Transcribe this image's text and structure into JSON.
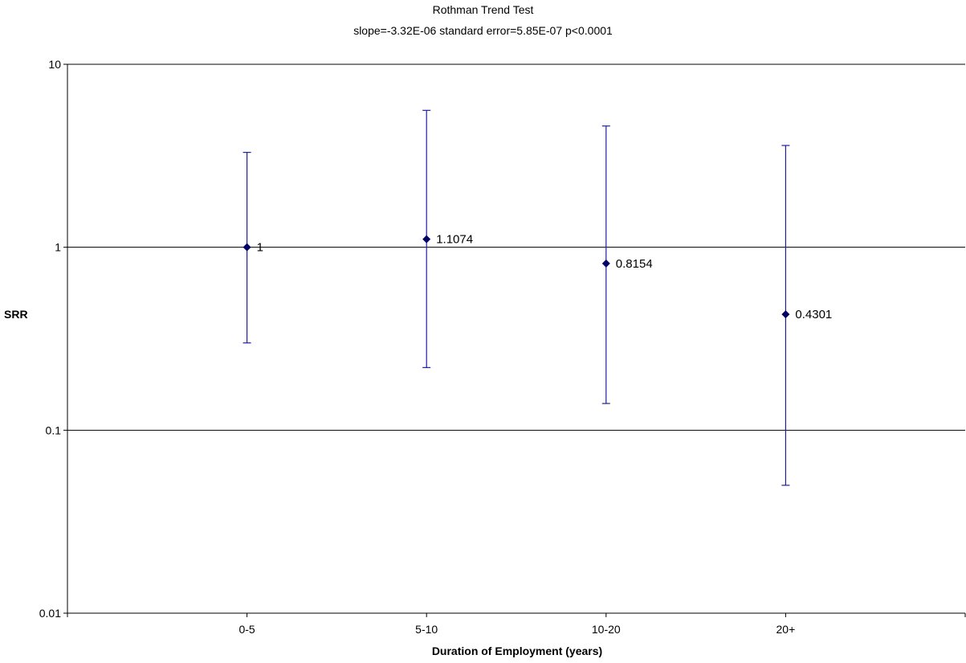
{
  "chart_data": {
    "type": "scatter",
    "title": "Rothman Trend Test",
    "subtitle": "slope=-3.32E-06   standard error=5.85E-07   p<0.0001",
    "xlabel": "Duration of Employment (years)",
    "ylabel": "SRR",
    "yscale": "log",
    "ylim": [
      0.01,
      10
    ],
    "yticks": [
      "0.01",
      "0.1",
      "1",
      "10"
    ],
    "categories": [
      "0-5",
      "5-10",
      "10-20",
      "20+"
    ],
    "values": [
      1,
      1.1074,
      0.8154,
      0.4301
    ],
    "data_labels": [
      "1",
      "1.1074",
      "0.8154",
      "0.4301"
    ],
    "error_low": [
      0.3,
      0.22,
      0.14,
      0.05
    ],
    "error_high": [
      3.3,
      5.6,
      4.6,
      3.6
    ],
    "grid": "major horizontal",
    "colors": {
      "marker": "#000066",
      "errorbar": "#1f1f9f",
      "grid": "#000000"
    }
  }
}
